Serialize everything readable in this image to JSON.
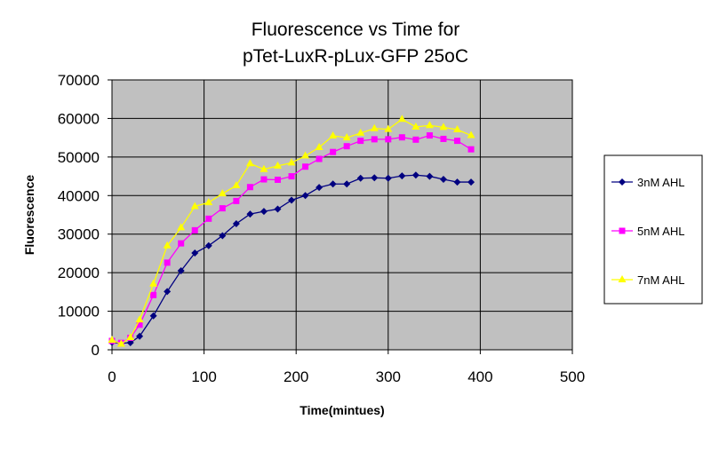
{
  "chart_data": {
    "type": "line",
    "title": [
      "Fluorescence vs Time for",
      "pTet-LuxR-pLux-GFP 25oC"
    ],
    "xlabel": "Time(mintues)",
    "ylabel": "Fluorescence",
    "xlim": [
      0,
      500
    ],
    "ylim": [
      0,
      70000
    ],
    "xticks": [
      "0",
      "100",
      "200",
      "300",
      "400",
      "500"
    ],
    "yticks": [
      "0",
      "10000",
      "20000",
      "30000",
      "40000",
      "50000",
      "60000",
      "70000"
    ],
    "grid": true,
    "legend_position": "right",
    "background": "#C0C0C0",
    "x": [
      0,
      10,
      20,
      30,
      45,
      60,
      75,
      90,
      105,
      120,
      135,
      150,
      165,
      180,
      195,
      210,
      225,
      240,
      255,
      270,
      285,
      300,
      315,
      330,
      345,
      360,
      375,
      390
    ],
    "series": [
      {
        "name": "3nM AHL",
        "color": "#000080",
        "marker": "diamond",
        "values": [
          1900,
          1700,
          1850,
          3500,
          8800,
          15100,
          20500,
          25100,
          27000,
          29600,
          32700,
          35200,
          35900,
          36500,
          38800,
          40000,
          42100,
          43000,
          43000,
          44500,
          44600,
          44500,
          45100,
          45300,
          45000,
          44200,
          43500,
          43500
        ]
      },
      {
        "name": "5nM AHL",
        "color": "#FF00FF",
        "marker": "square",
        "values": [
          2300,
          1800,
          3100,
          6500,
          14200,
          22600,
          27600,
          31000,
          34000,
          36700,
          38600,
          42200,
          44200,
          44100,
          45000,
          47500,
          49500,
          51300,
          52800,
          54200,
          54600,
          54600,
          55100,
          54500,
          55600,
          54700,
          54200,
          52000
        ]
      },
      {
        "name": "7nM AHL",
        "color": "#FFFF00",
        "marker": "triangle",
        "values": [
          2500,
          1500,
          3200,
          7800,
          17100,
          27000,
          31700,
          37200,
          38200,
          40500,
          42600,
          48300,
          46800,
          47700,
          48500,
          50300,
          52500,
          55500,
          55000,
          56200,
          57400,
          57200,
          59800,
          57800,
          58200,
          57700,
          57100,
          55600
        ]
      }
    ]
  }
}
